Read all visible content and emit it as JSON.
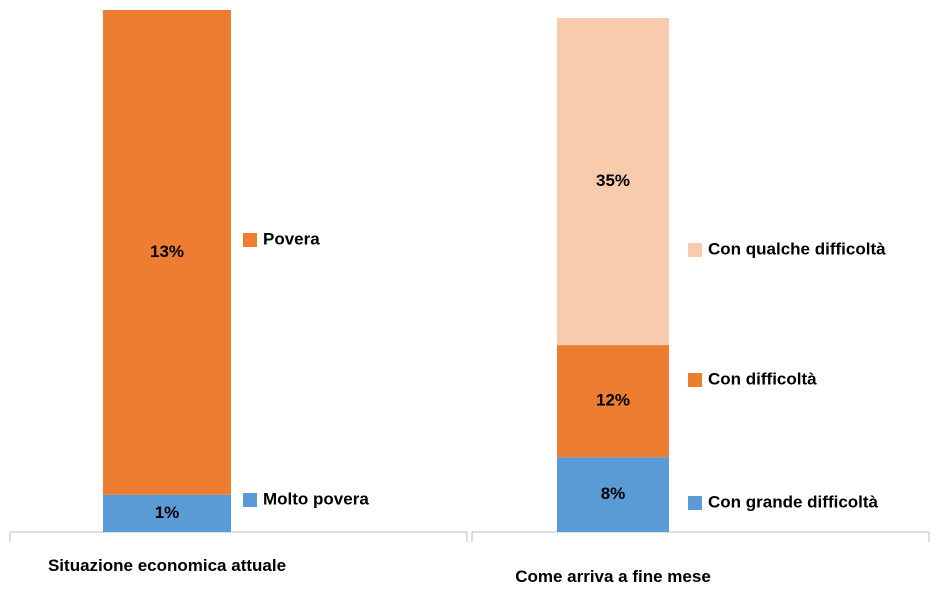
{
  "chart_data": [
    {
      "type": "bar",
      "stacked": true,
      "categories": [
        "Situazione economica attuale"
      ],
      "series": [
        {
          "name": "Molto povera",
          "color": "#5b9bd5",
          "values": [
            1
          ],
          "value_labels": [
            "1%"
          ]
        },
        {
          "name": "Povera",
          "color": "#ed7d31",
          "values": [
            13
          ],
          "value_labels": [
            "13%"
          ]
        }
      ]
    },
    {
      "type": "bar",
      "stacked": true,
      "categories": [
        "Come arriva a fine mese"
      ],
      "series": [
        {
          "name": "Con grande difficoltà",
          "color": "#5b9bd5",
          "values": [
            8
          ],
          "value_labels": [
            "8%"
          ]
        },
        {
          "name": "Con difficoltà",
          "color": "#ed7d31",
          "values": [
            12
          ],
          "value_labels": [
            "12%"
          ]
        },
        {
          "name": "Con qualche difficoltà",
          "color": "#f8cbad",
          "values": [
            35
          ],
          "value_labels": [
            "35%"
          ]
        }
      ]
    }
  ]
}
